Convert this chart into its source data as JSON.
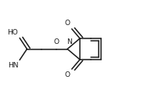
{
  "bg_color": "#ffffff",
  "line_color": "#1a1a1a",
  "lw": 1.1,
  "fs": 6.5,
  "figsize": [
    1.89,
    1.25
  ],
  "dpi": 100,
  "xlim": [
    0,
    1
  ],
  "ylim": [
    0,
    1
  ],
  "aspect_ratio": 1.512
}
